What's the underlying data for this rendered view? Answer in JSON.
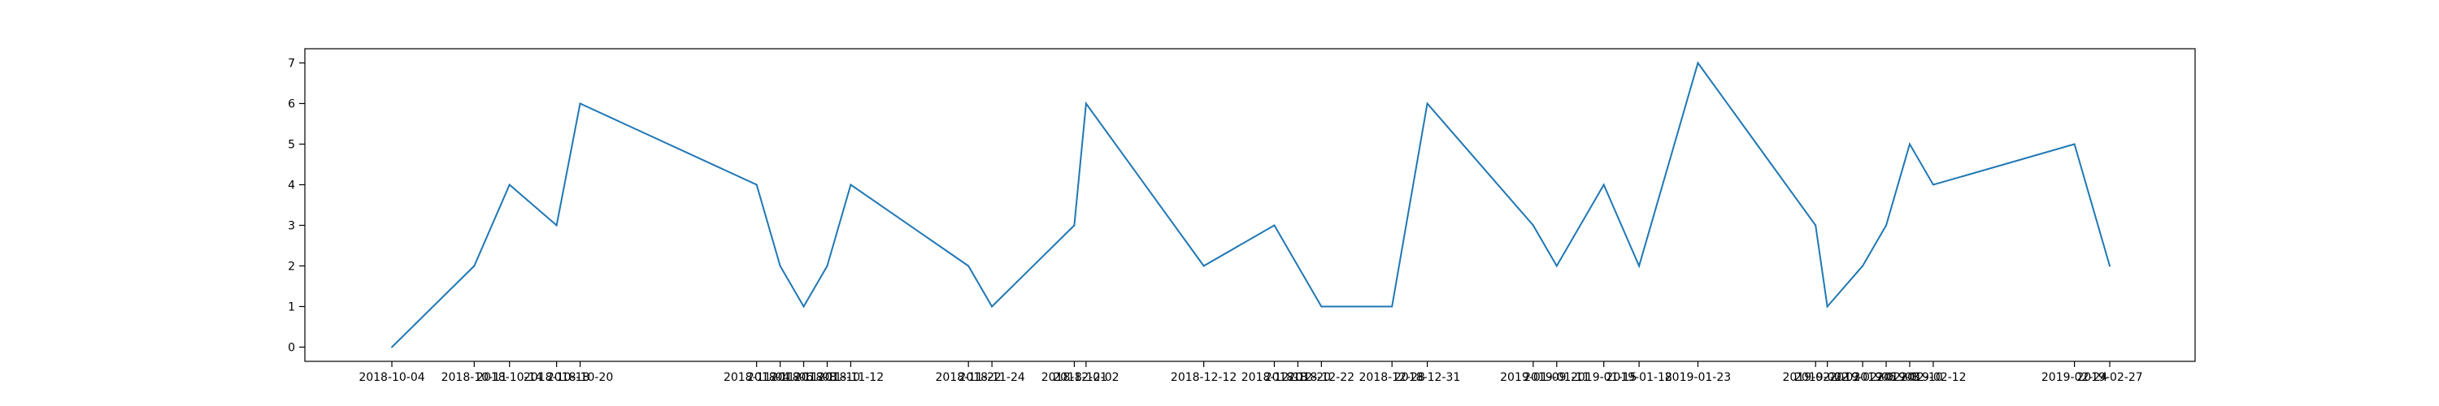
{
  "chart_data": {
    "type": "line",
    "title": "",
    "xlabel": "",
    "ylabel": "",
    "grid": false,
    "legend": false,
    "ylim": [
      -0.35,
      7.35
    ],
    "yticks": [
      0,
      1,
      2,
      3,
      4,
      5,
      6,
      7
    ],
    "x": [
      "2018-10-04",
      "2018-10-11",
      "2018-10-14",
      "2018-10-18",
      "2018-10-20",
      "2018-11-04",
      "2018-11-06",
      "2018-11-08",
      "2018-11-10",
      "2018-11-12",
      "2018-11-22",
      "2018-11-24",
      "2018-12-01",
      "2018-12-02",
      "2018-12-12",
      "2018-12-18",
      "2018-12-20",
      "2018-12-22",
      "2018-12-28",
      "2018-12-31",
      "2019-01-09",
      "2019-01-11",
      "2019-01-15",
      "2019-01-18",
      "2019-01-23",
      "2019-02-02",
      "2019-02-03",
      "2019-02-06",
      "2019-02-08",
      "2019-02-10",
      "2019-02-12",
      "2019-02-24",
      "2019-02-27"
    ],
    "series": [
      {
        "values": [
          0,
          2,
          4,
          3,
          6,
          4,
          2,
          1,
          2,
          4,
          2,
          1,
          3,
          6,
          2,
          3,
          2,
          1,
          1,
          6,
          3,
          2,
          4,
          2,
          7,
          3,
          1,
          2,
          3,
          5,
          4,
          5,
          2
        ]
      }
    ],
    "line_color": "#1f77b4"
  }
}
